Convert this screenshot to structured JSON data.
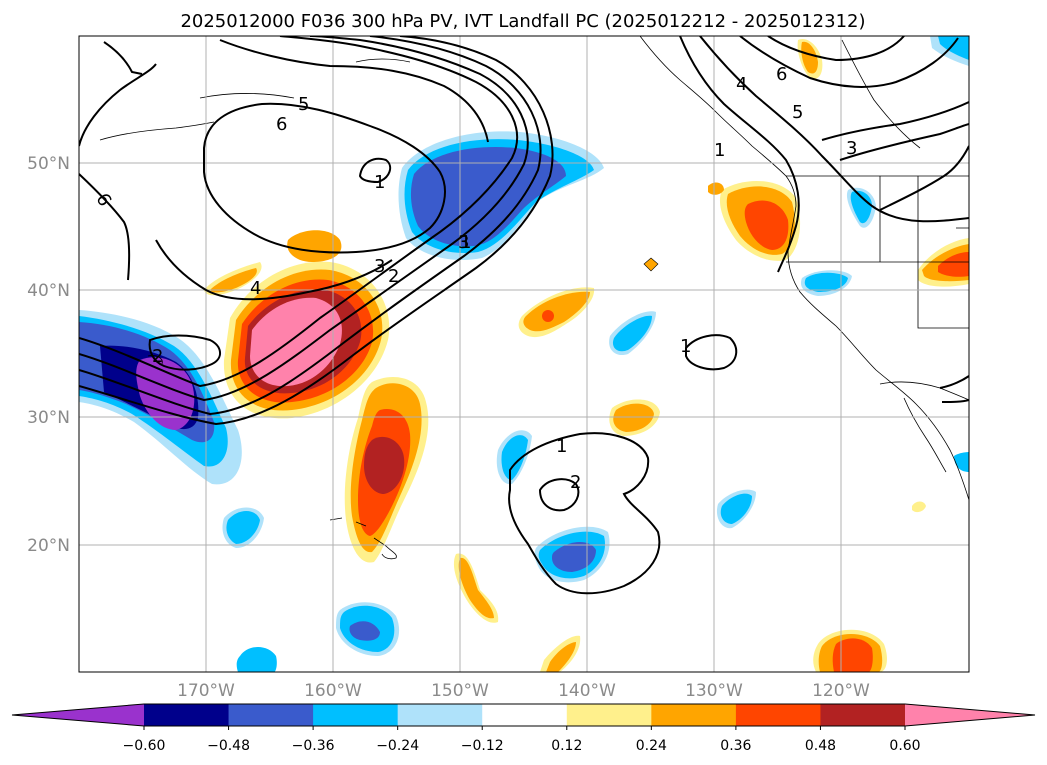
{
  "title": "2025012000 F036 300 hPa PV, IVT Landfall PC (2025012212 - 2025012312)",
  "lon_labels": [
    "170°W",
    "160°W",
    "150°W",
    "140°W",
    "130°W",
    "120°W"
  ],
  "lat_labels": [
    "50°N",
    "40°N",
    "30°N",
    "20°N"
  ],
  "colorbar": {
    "colors": [
      "#9a32cd",
      "#00008b",
      "#3a5bcc",
      "#00bfff",
      "#afe2fa",
      "#ffffff",
      "#fff08c",
      "#ffa500",
      "#ff4500",
      "#b22222",
      "#ff82ab"
    ],
    "tick_labels": [
      "−0.60",
      "−0.48",
      "−0.36",
      "−0.24",
      "−0.12",
      "0.12",
      "0.24",
      "0.36",
      "0.48",
      "0.60"
    ]
  },
  "contour_labels": [
    "6",
    "5",
    "6",
    "1",
    "3",
    "3",
    "2",
    "1",
    "4",
    "2",
    "1",
    "1",
    "2",
    "4",
    "6",
    "5",
    "1",
    "3"
  ]
}
